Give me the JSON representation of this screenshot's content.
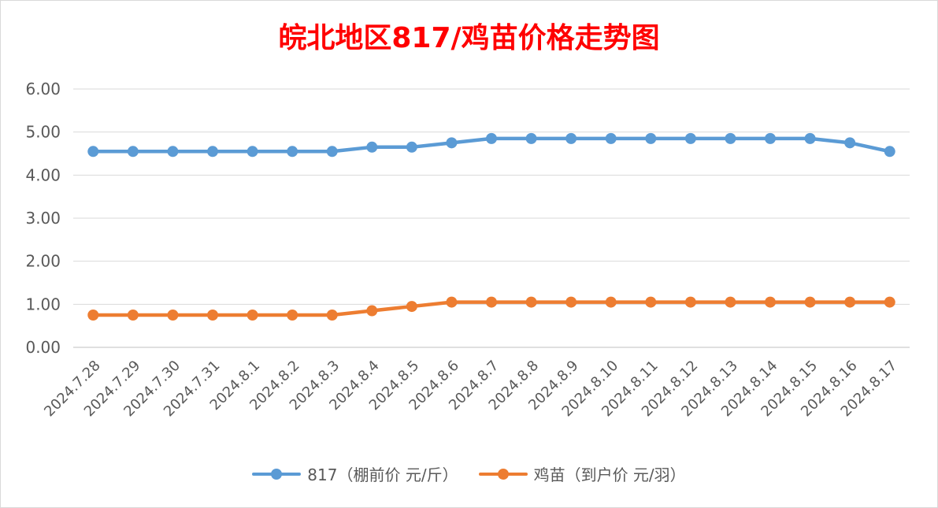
{
  "chart_data": {
    "type": "line",
    "title": "皖北地区817/鸡苗价格走势图",
    "categories": [
      "2024.7.28",
      "2024.7.29",
      "2024.7.30",
      "2024.7.31",
      "2024.8.1",
      "2024.8.2",
      "2024.8.3",
      "2024.8.4",
      "2024.8.5",
      "2024.8.6",
      "2024.8.7",
      "2024.8.8",
      "2024.8.9",
      "2024.8.10",
      "2024.8.11",
      "2024.8.12",
      "2024.8.13",
      "2024.8.14",
      "2024.8.15",
      "2024.8.16",
      "2024.8.17"
    ],
    "series": [
      {
        "name": "817（棚前价 元/斤）",
        "color": "#5b9bd5",
        "values": [
          4.55,
          4.55,
          4.55,
          4.55,
          4.55,
          4.55,
          4.55,
          4.65,
          4.65,
          4.75,
          4.85,
          4.85,
          4.85,
          4.85,
          4.85,
          4.85,
          4.85,
          4.85,
          4.85,
          4.75,
          4.55
        ]
      },
      {
        "name": "鸡苗（到户价 元/羽）",
        "color": "#ed7d31",
        "values": [
          0.75,
          0.75,
          0.75,
          0.75,
          0.75,
          0.75,
          0.75,
          0.85,
          0.95,
          1.05,
          1.05,
          1.05,
          1.05,
          1.05,
          1.05,
          1.05,
          1.05,
          1.05,
          1.05,
          1.05,
          1.05
        ]
      }
    ],
    "y_ticks": [
      "0.00",
      "1.00",
      "2.00",
      "3.00",
      "4.00",
      "5.00",
      "6.00"
    ],
    "ylim": [
      0,
      6
    ],
    "grid": true,
    "legend": "bottom"
  }
}
